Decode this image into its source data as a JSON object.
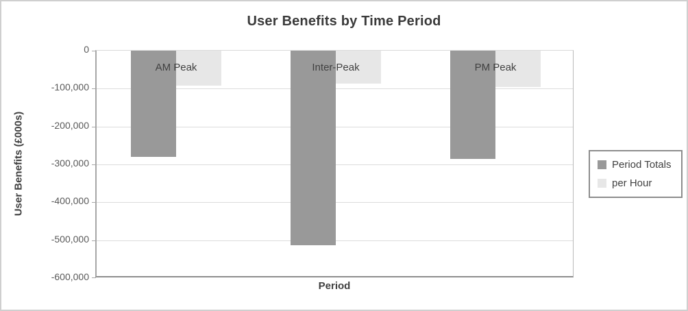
{
  "chart_data": {
    "type": "bar",
    "title": "User Benefits by Time Period",
    "xlabel": "Period",
    "ylabel": "User Benefits (£000s)",
    "categories": [
      "AM Peak",
      "Inter-Peak",
      "PM Peak"
    ],
    "series": [
      {
        "name": "Period Totals",
        "color": "#999999",
        "values": [
          -280000,
          -513000,
          -285000
        ]
      },
      {
        "name": "per Hour",
        "color": "#e7e7e7",
        "values": [
          -93000,
          -86000,
          -95000
        ]
      }
    ],
    "ylim": [
      -600000,
      0
    ],
    "ytick_step": 100000,
    "ytick_labels": [
      "0",
      "-100,000",
      "-200,000",
      "-300,000",
      "-400,000",
      "-500,000",
      "-600,000"
    ],
    "grid": true,
    "legend_position": "right"
  },
  "colors": {
    "series_dark": "#999999",
    "series_light": "#e7e7e7",
    "gridline": "#dcdcdc",
    "axis_line": "#a6a6a6",
    "title_text": "#3a3a3a",
    "tick_text": "#595959",
    "category_text": "#404040",
    "legend_border": "#8c8c8c",
    "frame_border": "#cfcfcf",
    "background": "#ffffff"
  }
}
